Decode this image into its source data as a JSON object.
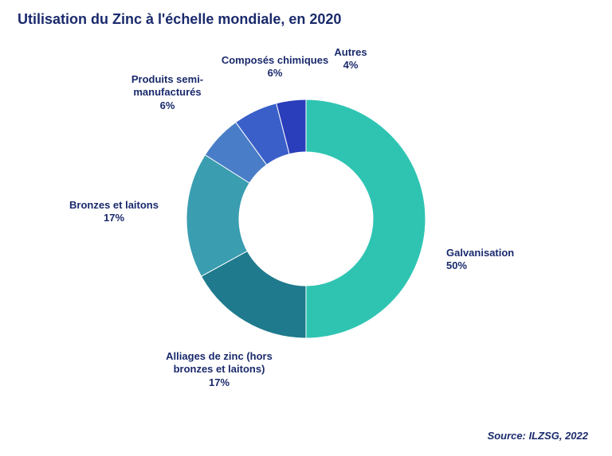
{
  "title": "Utilisation du Zinc à l'échelle mondiale, en 2020",
  "source": "Source: ILZSG, 2022",
  "chart": {
    "type": "donut",
    "inner_radius_ratio": 0.56,
    "background_color": "#ffffff",
    "series": [
      {
        "label": "Galvanisation",
        "value": 50,
        "color": "#2fc4b2"
      },
      {
        "label": "Alliages de zinc (hors bronzes et laitons)",
        "value": 17,
        "color": "#1e7a8c"
      },
      {
        "label": "Bronzes et laitons",
        "value": 17,
        "color": "#3a9db0"
      },
      {
        "label": "Produits semi-manufacturés",
        "value": 6,
        "color": "#4a7dc7"
      },
      {
        "label": "Composés chimiques",
        "value": 6,
        "color": "#3a5fc9"
      },
      {
        "label": "Autres",
        "value": 4,
        "color": "#2a3dbb"
      }
    ],
    "title_color": "#1a2a6c",
    "title_fontsize": 18,
    "label_color": "#1a2a6c",
    "label_fontsize": 13,
    "label_fontweight": "bold"
  },
  "labels": {
    "galvanisation": "Galvanisation\n50%",
    "alliages": "Alliages de zinc (hors\nbronzes et laitons)\n17%",
    "bronzes": "Bronzes et laitons\n17%",
    "produits": "Produits semi-\nmanufacturés\n6%",
    "composes": "Composés chimiques\n6%",
    "autres": "Autres\n4%"
  }
}
